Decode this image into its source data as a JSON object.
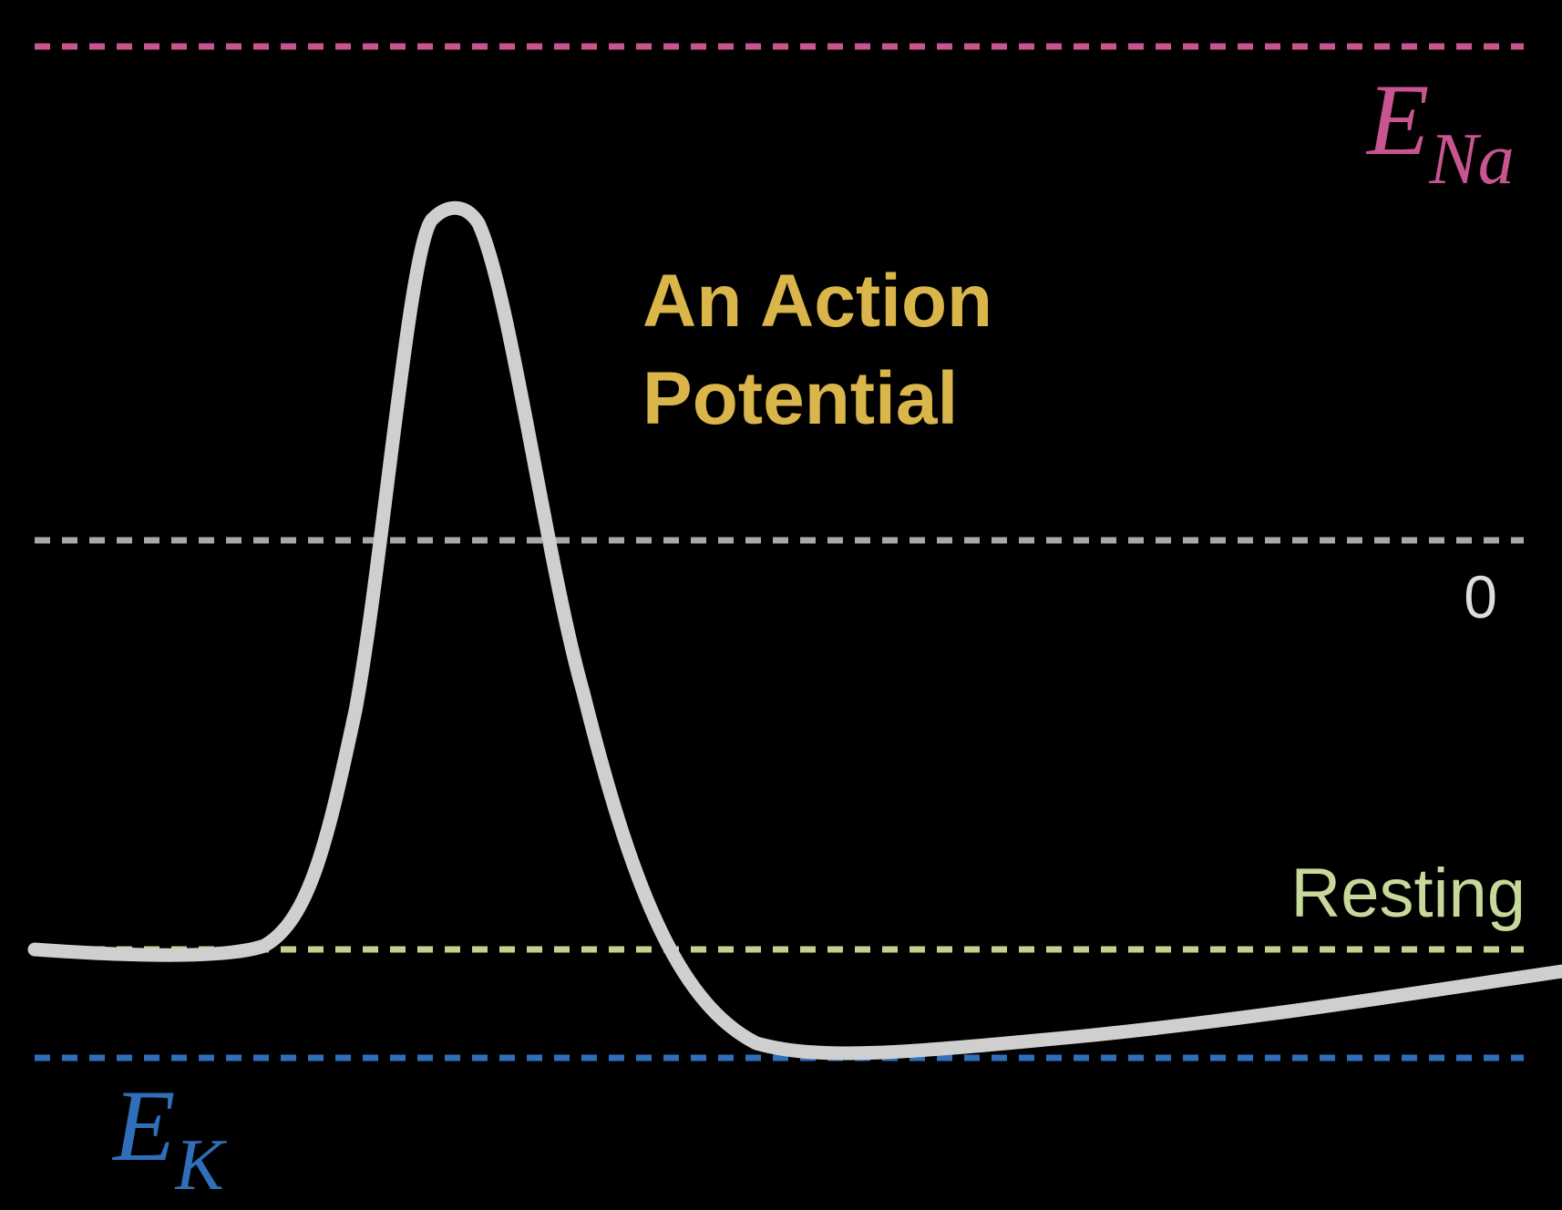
{
  "title": {
    "line1": "An Action",
    "line2": "Potential"
  },
  "levels": {
    "sodium": {
      "symbol": "E",
      "subscript": "Na"
    },
    "zero": {
      "label": "0"
    },
    "resting": {
      "label": "Resting"
    },
    "potassium": {
      "symbol": "E",
      "subscript": "K"
    }
  }
}
